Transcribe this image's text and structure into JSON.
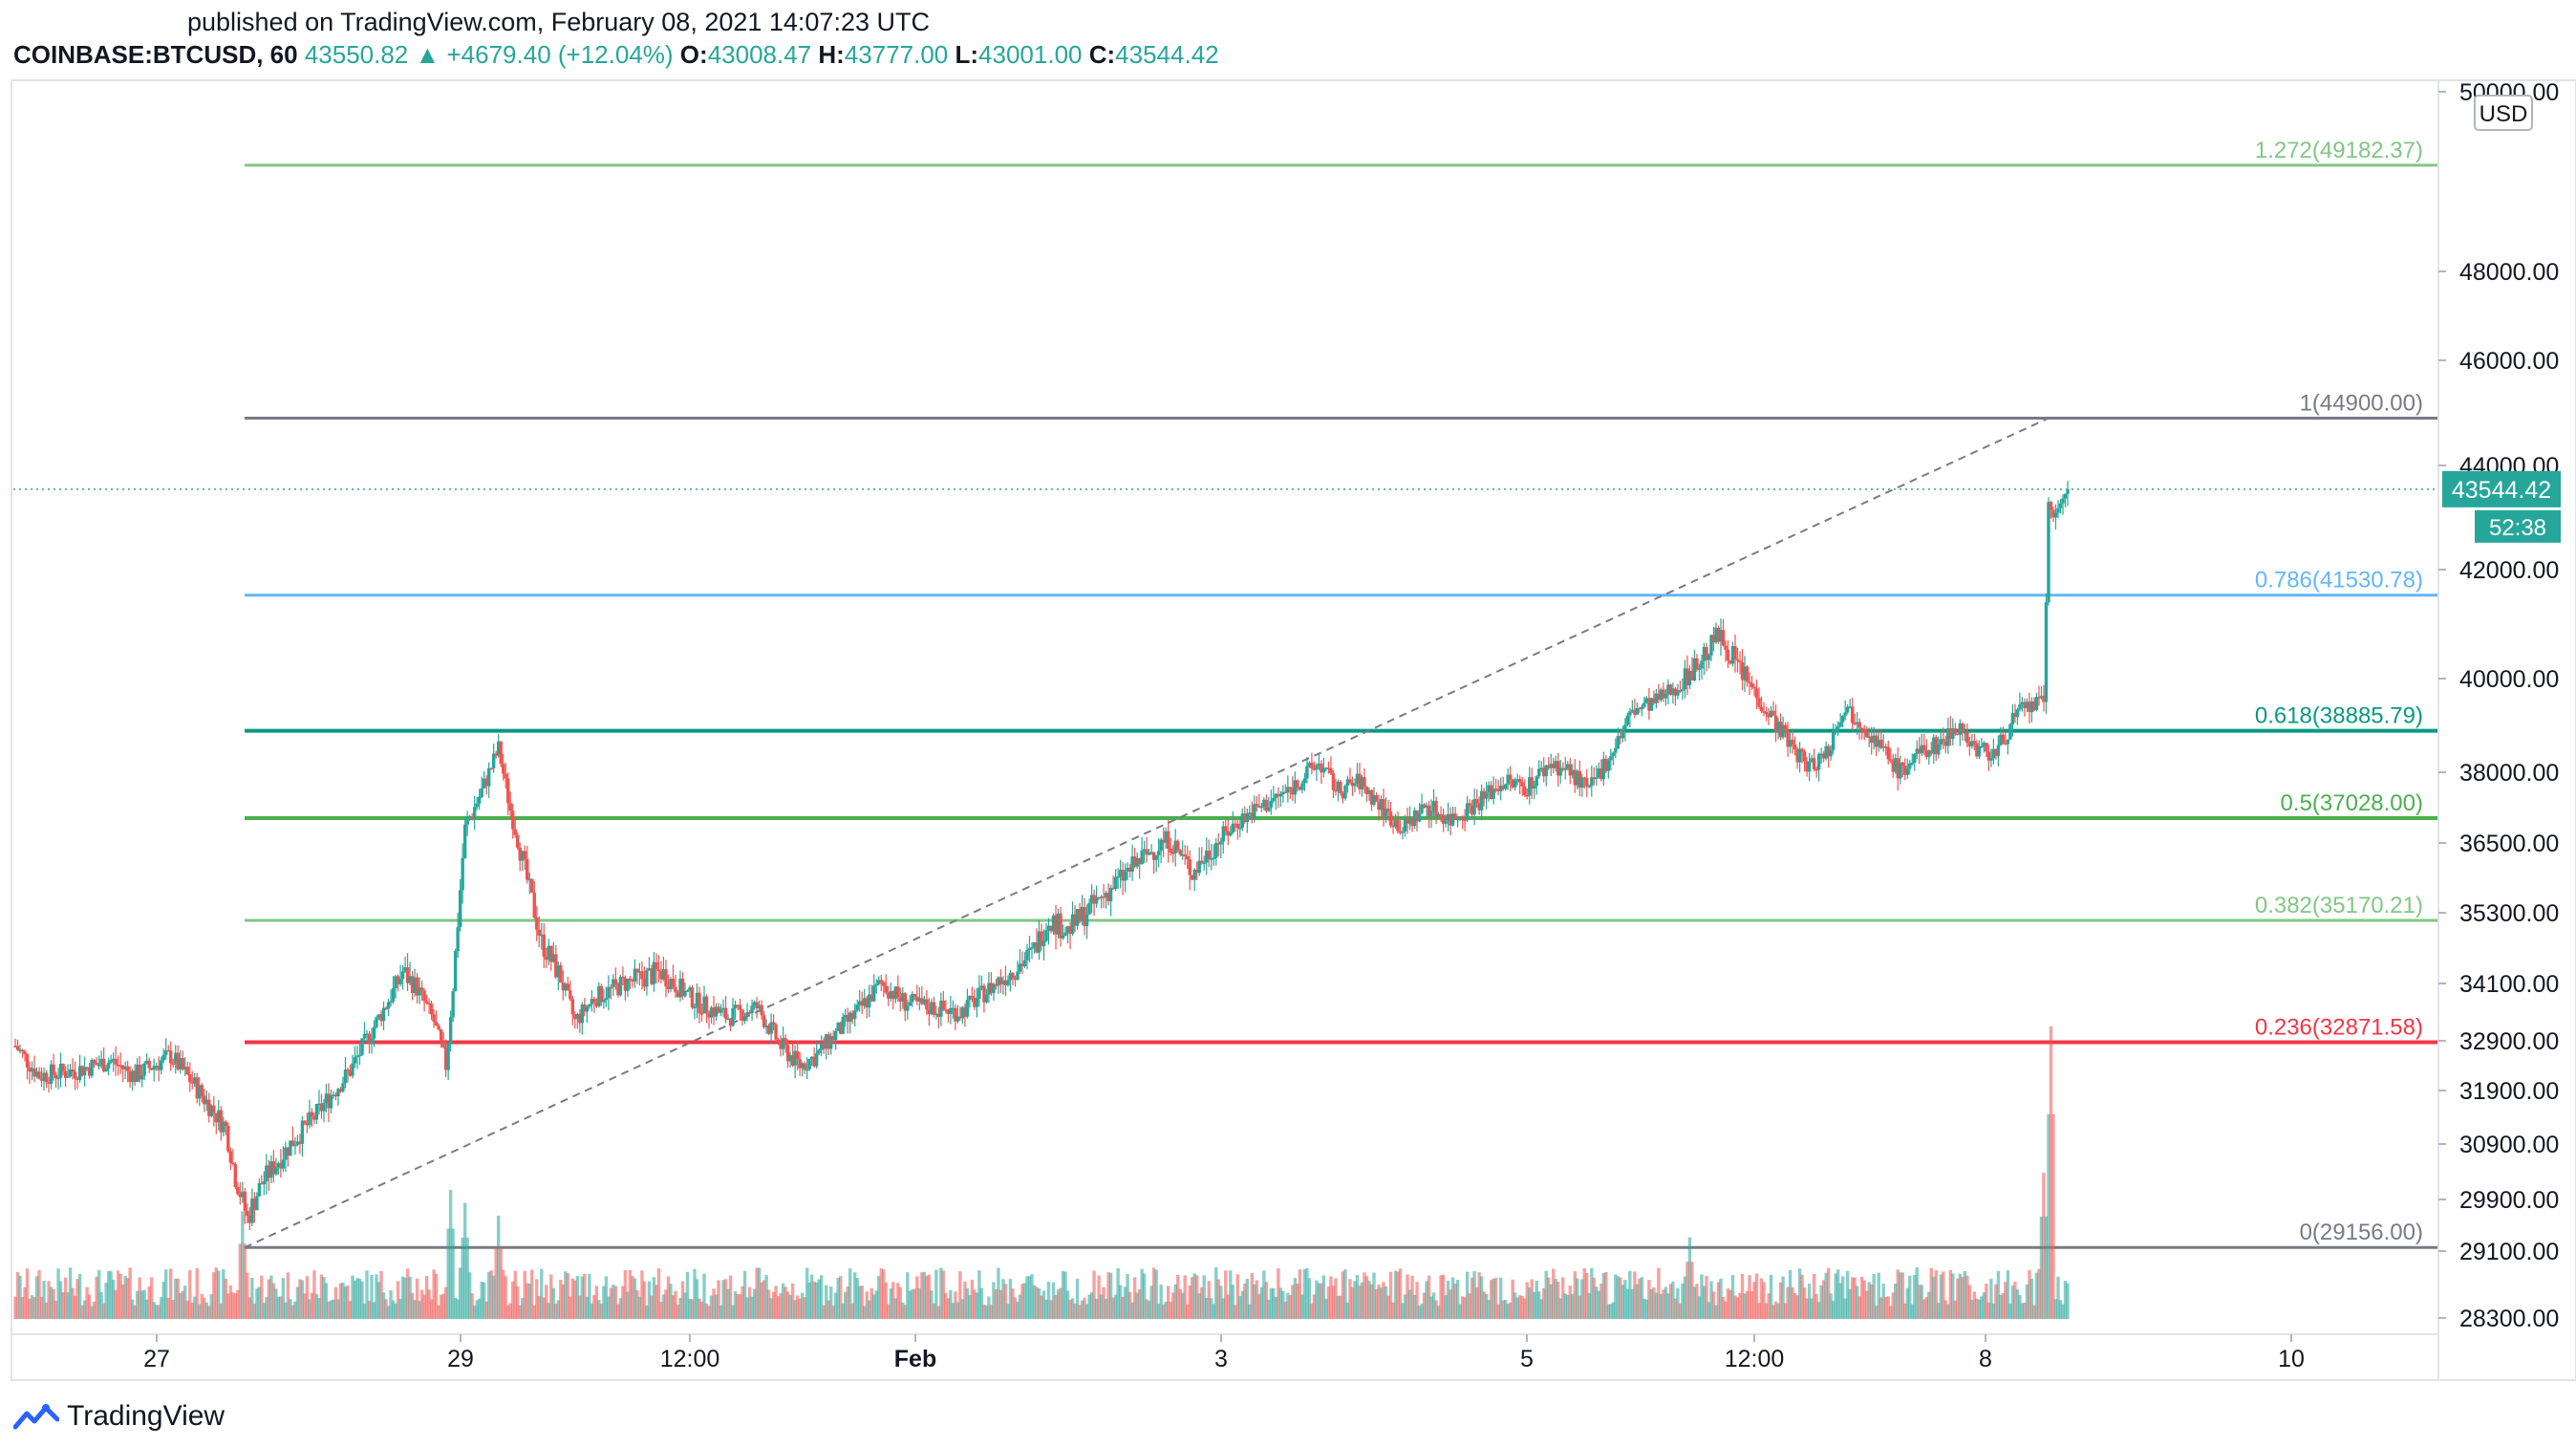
{
  "header": {
    "published": "published on TradingView.com, February 08, 2021 14:07:23 UTC",
    "symbol": "COINBASE:BTCUSD, 60",
    "last": "43550.82",
    "change_arrow": "▲",
    "change": "+4679.40 (+12.04%)",
    "o_label": "O:",
    "o_value": "43008.47",
    "h_label": "H:",
    "h_value": "43777.00",
    "l_label": "L:",
    "l_value": "43001.00",
    "c_label": "C:",
    "c_value": "43544.42"
  },
  "footer": {
    "brand": "TradingView",
    "logo_icon": "tradingview-logo-icon"
  },
  "colors": {
    "up": "#26a69a",
    "down": "#ef5350",
    "grid": "#f0f3fa",
    "axis_text": "#131722"
  },
  "chart_data": {
    "type": "candlestick",
    "currency_label": "USD",
    "ylim": [
      28000,
      50300
    ],
    "y_ticks": [
      "50000.00",
      "48000.00",
      "46000.00",
      "44000.00",
      "42000.00",
      "40000.00",
      "38000.00",
      "36500.00",
      "35300.00",
      "34100.00",
      "32900.00",
      "31900.00",
      "30900.00",
      "29900.00",
      "29100.00",
      "28300.00"
    ],
    "x_ticks": [
      "27",
      "29",
      "12:00",
      "Feb",
      "3",
      "5",
      "12:00",
      "8",
      "10"
    ],
    "last_price_label": "43544.42",
    "countdown_label": "52:38",
    "last_price": 43544.42,
    "fib_levels": [
      {
        "label": "1.272(49182.37)",
        "price": 49182.37,
        "color": "#81c784"
      },
      {
        "label": "1(44900.00)",
        "price": 44900.0,
        "color": "#787b86"
      },
      {
        "label": "0.786(41530.78)",
        "price": 41530.78,
        "color": "#64b5f6"
      },
      {
        "label": "0.618(38885.79)",
        "price": 38885.79,
        "color": "#089981"
      },
      {
        "label": "0.5(37028.00)",
        "price": 37028.0,
        "color": "#4caf50"
      },
      {
        "label": "0.382(35170.21)",
        "price": 35170.21,
        "color": "#81c784"
      },
      {
        "label": "0.236(32871.58)",
        "price": 32871.58,
        "color": "#f23645"
      },
      {
        "label": "0(29156.00)",
        "price": 29156.0,
        "color": "#787b86"
      }
    ],
    "trendline": {
      "from_price": 29156,
      "to_price": 44900
    },
    "price_path": [
      [
        0,
        32800
      ],
      [
        10,
        32200
      ],
      [
        25,
        32300
      ],
      [
        40,
        32500
      ],
      [
        50,
        32200
      ],
      [
        65,
        32600
      ],
      [
        75,
        32000
      ],
      [
        88,
        31200
      ],
      [
        92,
        30300
      ],
      [
        97,
        29600
      ],
      [
        103,
        30200
      ],
      [
        115,
        30900
      ],
      [
        125,
        31400
      ],
      [
        140,
        32300
      ],
      [
        150,
        33200
      ],
      [
        162,
        34300
      ],
      [
        168,
        34000
      ],
      [
        175,
        33300
      ],
      [
        180,
        32400
      ],
      [
        188,
        36800
      ],
      [
        195,
        37600
      ],
      [
        202,
        38500
      ],
      [
        207,
        37200
      ],
      [
        212,
        36200
      ],
      [
        220,
        34800
      ],
      [
        228,
        34200
      ],
      [
        234,
        33300
      ],
      [
        242,
        33800
      ],
      [
        255,
        34100
      ],
      [
        270,
        34300
      ],
      [
        285,
        33700
      ],
      [
        298,
        33400
      ],
      [
        310,
        33600
      ],
      [
        320,
        32800
      ],
      [
        328,
        32400
      ],
      [
        335,
        32600
      ],
      [
        342,
        33000
      ],
      [
        352,
        33500
      ],
      [
        362,
        34100
      ],
      [
        372,
        33700
      ],
      [
        382,
        33600
      ],
      [
        395,
        33500
      ],
      [
        410,
        34100
      ],
      [
        425,
        34600
      ],
      [
        432,
        35200
      ],
      [
        440,
        35000
      ],
      [
        455,
        35600
      ],
      [
        470,
        36200
      ],
      [
        482,
        36600
      ],
      [
        492,
        36000
      ],
      [
        500,
        36400
      ],
      [
        512,
        37000
      ],
      [
        522,
        37300
      ],
      [
        532,
        37600
      ],
      [
        545,
        38200
      ],
      [
        553,
        37600
      ],
      [
        562,
        37800
      ],
      [
        572,
        37200
      ],
      [
        580,
        36800
      ],
      [
        590,
        37300
      ],
      [
        600,
        37000
      ],
      [
        612,
        37400
      ],
      [
        622,
        37800
      ],
      [
        632,
        37700
      ],
      [
        642,
        38200
      ],
      [
        650,
        38000
      ],
      [
        658,
        37600
      ],
      [
        668,
        38500
      ],
      [
        676,
        39300
      ],
      [
        686,
        39500
      ],
      [
        696,
        39900
      ],
      [
        704,
        40300
      ],
      [
        712,
        40800
      ],
      [
        718,
        40400
      ],
      [
        726,
        39800
      ],
      [
        734,
        39200
      ],
      [
        742,
        38600
      ],
      [
        750,
        38100
      ],
      [
        758,
        38500
      ],
      [
        764,
        39400
      ],
      [
        772,
        39100
      ],
      [
        780,
        38500
      ],
      [
        788,
        38000
      ],
      [
        796,
        38400
      ],
      [
        804,
        38600
      ],
      [
        812,
        39000
      ],
      [
        820,
        38500
      ],
      [
        828,
        38400
      ],
      [
        836,
        39200
      ],
      [
        842,
        39400
      ],
      [
        848,
        39500
      ],
      [
        850,
        43300
      ],
      [
        852,
        43000
      ],
      [
        858,
        43544
      ]
    ],
    "volume_spikes": [
      {
        "bar": 95,
        "volume": 2500
      },
      {
        "bar": 182,
        "volume": 3000
      },
      {
        "bar": 188,
        "volume": 2700
      },
      {
        "bar": 202,
        "volume": 2400
      },
      {
        "bar": 700,
        "volume": 1900
      },
      {
        "bar": 848,
        "volume": 3400
      },
      {
        "bar": 851,
        "volume": 6800
      }
    ]
  }
}
